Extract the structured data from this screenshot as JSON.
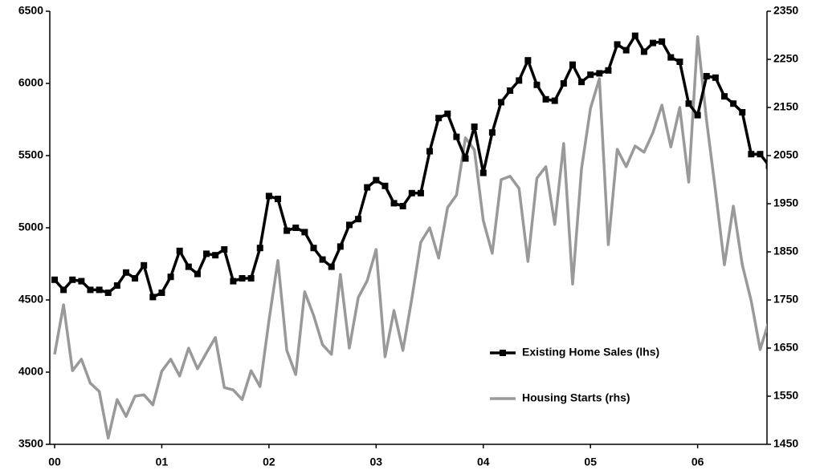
{
  "chart_data": {
    "type": "line",
    "categories": [
      "00",
      null,
      null,
      null,
      null,
      null,
      null,
      null,
      null,
      null,
      null,
      null,
      "01",
      null,
      null,
      null,
      null,
      null,
      null,
      null,
      null,
      null,
      null,
      null,
      "02",
      null,
      null,
      null,
      null,
      null,
      null,
      null,
      null,
      null,
      null,
      null,
      "03",
      null,
      null,
      null,
      null,
      null,
      null,
      null,
      null,
      null,
      null,
      null,
      "04",
      null,
      null,
      null,
      null,
      null,
      null,
      null,
      null,
      null,
      null,
      null,
      "05",
      null,
      null,
      null,
      null,
      null,
      null,
      null,
      null,
      null,
      null,
      null,
      "06",
      null,
      null,
      null,
      null,
      null,
      null,
      null,
      null
    ],
    "series": [
      {
        "name": "Existing Home Sales (lhs)",
        "color": "#000000",
        "marker": "square",
        "values": [
          4640,
          4570,
          4640,
          4630,
          4570,
          4570,
          4550,
          4600,
          4690,
          4650,
          4740,
          4520,
          4550,
          4660,
          4840,
          4730,
          4680,
          4820,
          4810,
          4850,
          4630,
          4650,
          4650,
          4860,
          5220,
          5200,
          4980,
          5000,
          4970,
          4860,
          4780,
          4730,
          4870,
          5020,
          5060,
          5280,
          5330,
          5290,
          5170,
          5150,
          5240,
          5240,
          5530,
          5760,
          5790,
          5630,
          5480,
          5700,
          5380,
          5660,
          5870,
          5950,
          6020,
          6160,
          5990,
          5890,
          5880,
          6000,
          6130,
          6010,
          6060,
          6070,
          6090,
          6270,
          6230,
          6330,
          6220,
          6280,
          6290,
          6180,
          6150,
          5860,
          5780,
          6050,
          6040,
          5910,
          5860,
          5800,
          5510,
          5510,
          5430
        ]
      },
      {
        "name": "Housing Starts (rhs)",
        "color": "#999999",
        "axis": "y2",
        "values": [
          1637,
          1740,
          1603,
          1627,
          1577,
          1560,
          1463,
          1543,
          1508,
          1550,
          1553,
          1532,
          1602,
          1627,
          1592,
          1650,
          1607,
          1640,
          1672,
          1568,
          1563,
          1543,
          1603,
          1570,
          1707,
          1832,
          1645,
          1595,
          1767,
          1718,
          1657,
          1637,
          1803,
          1650,
          1755,
          1790,
          1855,
          1632,
          1728,
          1645,
          1753,
          1870,
          1900,
          1837,
          1942,
          1968,
          2087,
          2062,
          1915,
          1847,
          2000,
          2007,
          1982,
          1830,
          2003,
          2027,
          1907,
          2075,
          1783,
          2023,
          2148,
          2210,
          1865,
          2063,
          2027,
          2070,
          2057,
          2098,
          2155,
          2068,
          2150,
          1995,
          2297,
          2123,
          1977,
          1823,
          1945,
          1823,
          1748,
          1647,
          1707
        ]
      }
    ],
    "ylim": [
      3500,
      6500
    ],
    "yticks": [
      3500,
      4000,
      4500,
      5000,
      5500,
      6000,
      6500
    ],
    "y2lim": [
      1450,
      2350
    ],
    "y2ticks": [
      1450,
      1550,
      1650,
      1750,
      1850,
      1950,
      2050,
      2150,
      2250,
      2350
    ],
    "legend": "lower right",
    "grid": false
  }
}
